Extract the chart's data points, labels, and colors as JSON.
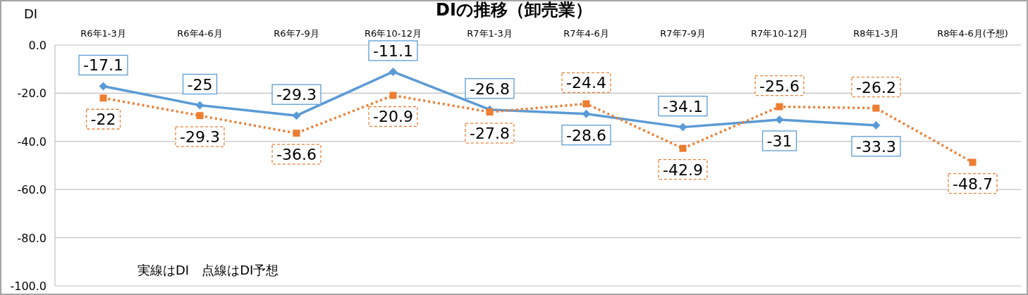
{
  "chart_data": {
    "type": "line",
    "title": "DIの推移（卸売業）",
    "ylabel": "DI",
    "categories": [
      "R6年1-3月",
      "R6年4-6月",
      "R6年7-9月",
      "R6年10-12月",
      "R7年1-3月",
      "R7年4-6月",
      "R7年7-9月",
      "R7年10-12月",
      "R8年1-3月",
      "R8年4-6月(予想)"
    ],
    "series": [
      {
        "color": "#5b9bd5",
        "marker": "diamond",
        "line_style": "solid",
        "values": [
          -17.1,
          -25,
          -29.3,
          -11.1,
          -26.8,
          -28.6,
          -34.1,
          -31,
          -33.3,
          null
        ]
      },
      {
        "color": "#ed7d31",
        "marker": "square",
        "line_style": "dotted",
        "values": [
          -22,
          -29.3,
          -36.6,
          -20.9,
          -27.8,
          -24.4,
          -42.9,
          -25.6,
          -26.2,
          -48.7
        ]
      }
    ],
    "ylim": [
      -100,
      0
    ],
    "yticks": [
      {
        "value": 0,
        "label": "0.0"
      },
      {
        "value": -20,
        "label": "-20.0"
      },
      {
        "value": -40,
        "label": "-40.0"
      },
      {
        "value": -60,
        "label": "-60.0"
      },
      {
        "value": -80,
        "label": "-80.0"
      },
      {
        "value": -100,
        "label": "-100.0"
      }
    ],
    "grid": "y",
    "data_labels": true,
    "annotations": [
      "実線はDI　点線はDI予想"
    ]
  }
}
